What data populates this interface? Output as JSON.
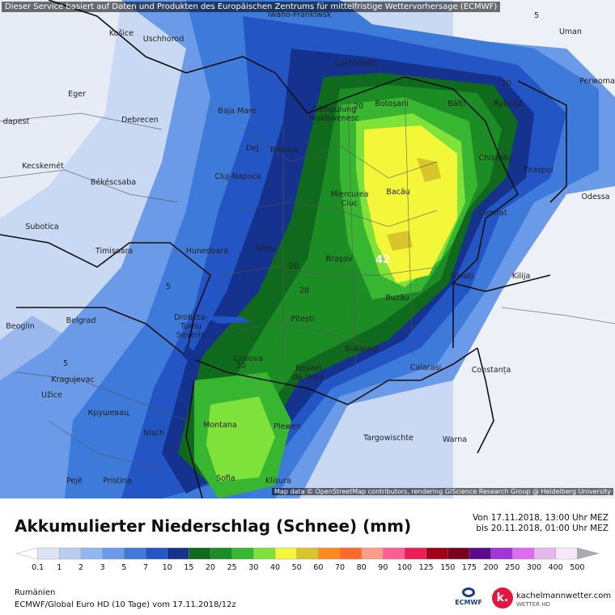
{
  "notice": "Dieser Service basiert auf Daten und Produkten des Europäischen Zentrums für mittelfristige Wettervorhersage (ECMWF)",
  "attribution": "Map data © OpenStreetMap contributors, rendering GIScience Research Group @ Heidelberg University",
  "title": "Akkumulierter Niederschlag (Schnee) (mm)",
  "period_from": "Von 17.11.2018, 13:00 Uhr MEZ",
  "period_to": "bis 20.11.2018, 01:00 Uhr MEZ",
  "region": "Rumänien",
  "model_info": "ECMWF/Global Euro HD (10 Tage) vom 17.11.2018/12z",
  "ecmwf_label": "ECMWF",
  "brand_name": "kachelmannwetter.com",
  "brand_sub": "WETTER HD",
  "brand_logo_letter": "k.",
  "max_value_label": "42",
  "contour_labels": [
    "5",
    "5",
    "5",
    "20",
    "20",
    "20",
    "20",
    "20"
  ],
  "scale": {
    "labels": [
      "0.1",
      "1",
      "2",
      "3",
      "5",
      "7",
      "10",
      "15",
      "20",
      "25",
      "30",
      "40",
      "50",
      "60",
      "70",
      "80",
      "90",
      "100",
      "125",
      "150",
      "175",
      "200",
      "250",
      "300",
      "400",
      "500"
    ],
    "colors": [
      "#ffffff",
      "#dce4f4",
      "#b9cdf0",
      "#93b6ee",
      "#6a9ae8",
      "#3e7ad9",
      "#2356c4",
      "#14328e",
      "#0f6a1d",
      "#1c8d25",
      "#39b631",
      "#7fe23a",
      "#f4f63a",
      "#d8c52b",
      "#ff8a1e",
      "#ff6a2a",
      "#ff9d88",
      "#ff5d94",
      "#ee1d58",
      "#a40015",
      "#7a0020",
      "#5a0a8a",
      "#a335d8",
      "#dd6cf0",
      "#e4b8ec",
      "#f4eaf6",
      "#d8dbe8"
    ]
  },
  "cities": [
    {
      "name": "Košice"
    },
    {
      "name": "Uschhorod"
    },
    {
      "name": "Iwano-Frankiwsk"
    },
    {
      "name": "Czernowitz"
    },
    {
      "name": "Uman"
    },
    {
      "name": "Eger"
    },
    {
      "name": "dapest"
    },
    {
      "name": "Debrecen"
    },
    {
      "name": "Baja Mare"
    },
    {
      "name": "Botoșani"
    },
    {
      "name": "Bălți"
    },
    {
      "name": "Rybnița"
    },
    {
      "name": "Perwoma"
    },
    {
      "name": "Câmpulung Moldovenesc"
    },
    {
      "name": "Dej"
    },
    {
      "name": "Bistrița"
    },
    {
      "name": "Kecskemét"
    },
    {
      "name": "Cluj-Napoca"
    },
    {
      "name": "Chișinău"
    },
    {
      "name": "Tiraspol"
    },
    {
      "name": "Békéscsaba"
    },
    {
      "name": "Miercurea Ciuc"
    },
    {
      "name": "Bacău"
    },
    {
      "name": "Odessa"
    },
    {
      "name": "Subotica"
    },
    {
      "name": "Comrat"
    },
    {
      "name": "Timișoara"
    },
    {
      "name": "Hunedoara"
    },
    {
      "name": "Sibiu"
    },
    {
      "name": "Brașov"
    },
    {
      "name": "Galați"
    },
    {
      "name": "Kilija"
    },
    {
      "name": "Beoglin"
    },
    {
      "name": "Belgrad"
    },
    {
      "name": "Buzău"
    },
    {
      "name": "Drobeta-Turnu Severin"
    },
    {
      "name": "Pitești"
    },
    {
      "name": "Craiova"
    },
    {
      "name": "Bukarest"
    },
    {
      "name": "Calarasi"
    },
    {
      "name": "Constanța"
    },
    {
      "name": "Roșiori de Vede"
    },
    {
      "name": "Kragujevac"
    },
    {
      "name": "Užice"
    },
    {
      "name": "Крушевац"
    },
    {
      "name": "Nisch"
    },
    {
      "name": "Montana"
    },
    {
      "name": "Plewen"
    },
    {
      "name": "Targowischte"
    },
    {
      "name": "Warna"
    },
    {
      "name": "Pejë"
    },
    {
      "name": "Pristina"
    },
    {
      "name": "Sofia"
    },
    {
      "name": "Klisura"
    }
  ]
}
